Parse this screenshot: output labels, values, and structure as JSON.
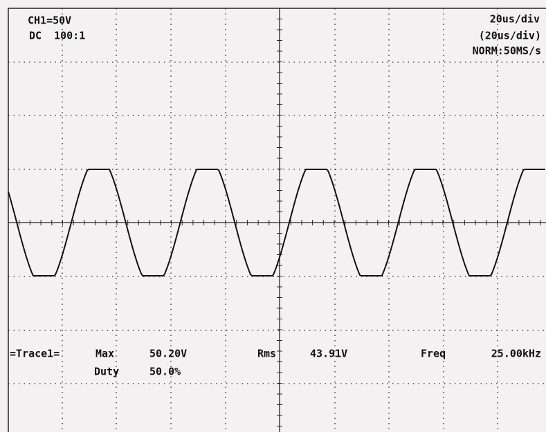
{
  "header": {
    "channel": "CH1=50V",
    "coupling": "DC  100:1",
    "timebase": "20us/div",
    "timebase_sub": "(20us/div)",
    "mode": "NORM:50MS/s"
  },
  "measurements": {
    "trace": "=Trace1=",
    "max_label": "Max",
    "max_value": "50.20V",
    "duty_label": "Duty",
    "duty_value": "50.0%",
    "rms_label": "Rms",
    "rms_value": "43.91V",
    "freq_label": "Freq",
    "freq_value": "25.00kHz"
  }
}
